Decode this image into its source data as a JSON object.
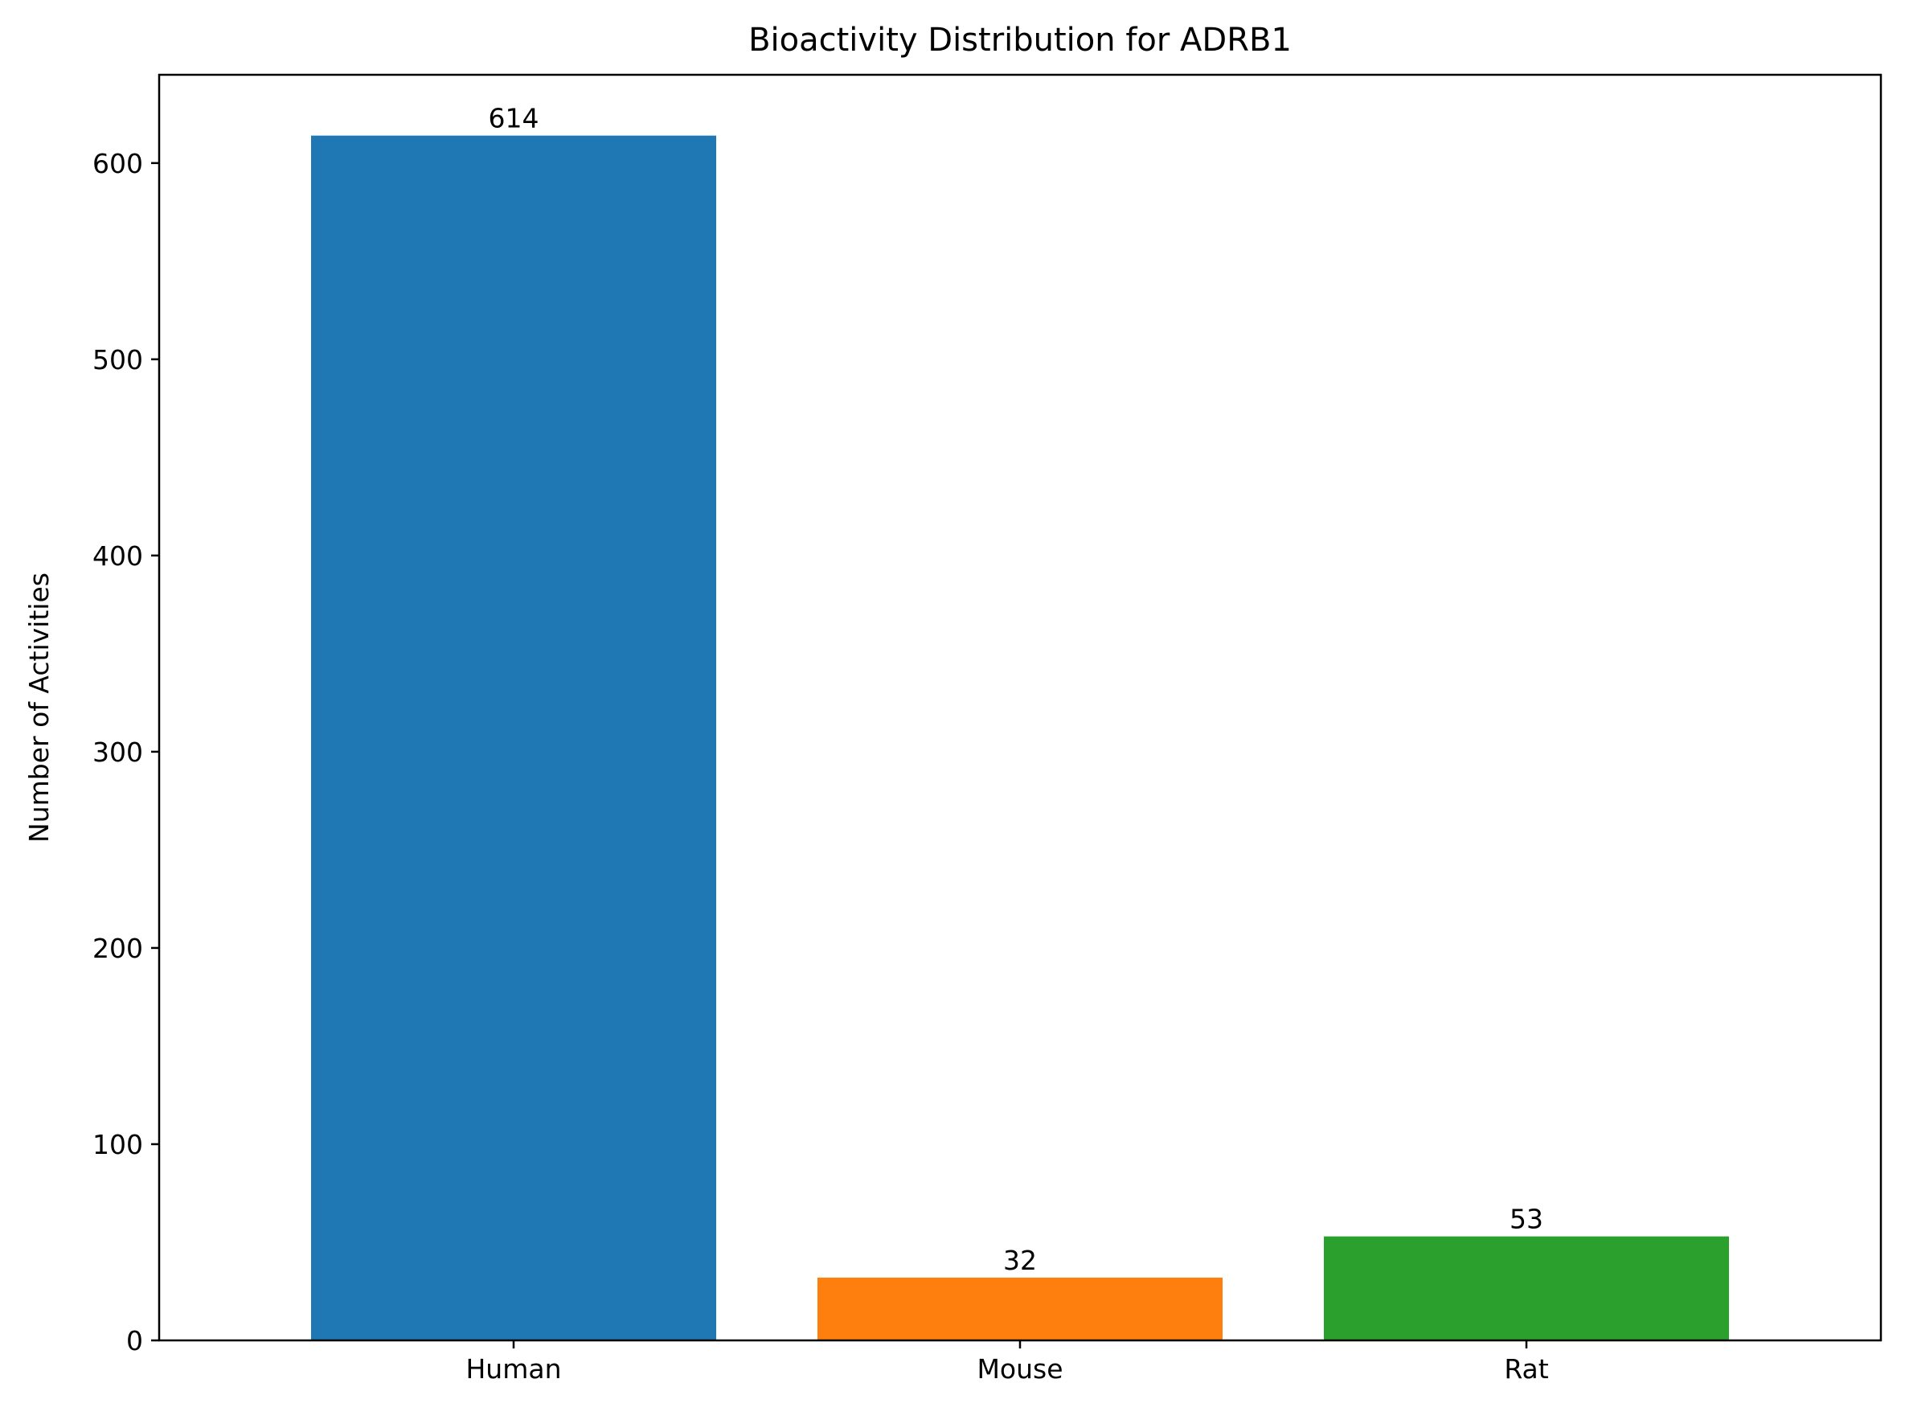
{
  "chart_data": {
    "type": "bar",
    "title": "Bioactivity Distribution for ADRB1",
    "xlabel": "",
    "ylabel": "Number of Activities",
    "categories": [
      "Human",
      "Mouse",
      "Rat"
    ],
    "values": [
      614,
      32,
      53
    ],
    "data_labels": [
      "614",
      "32",
      "53"
    ],
    "colors": [
      "#1f77b4",
      "#ff7f0e",
      "#2ca02c"
    ],
    "ylim": [
      0,
      645
    ],
    "yticks": [
      0,
      100,
      200,
      300,
      400,
      500,
      600
    ],
    "grid": false,
    "legend": "none"
  }
}
